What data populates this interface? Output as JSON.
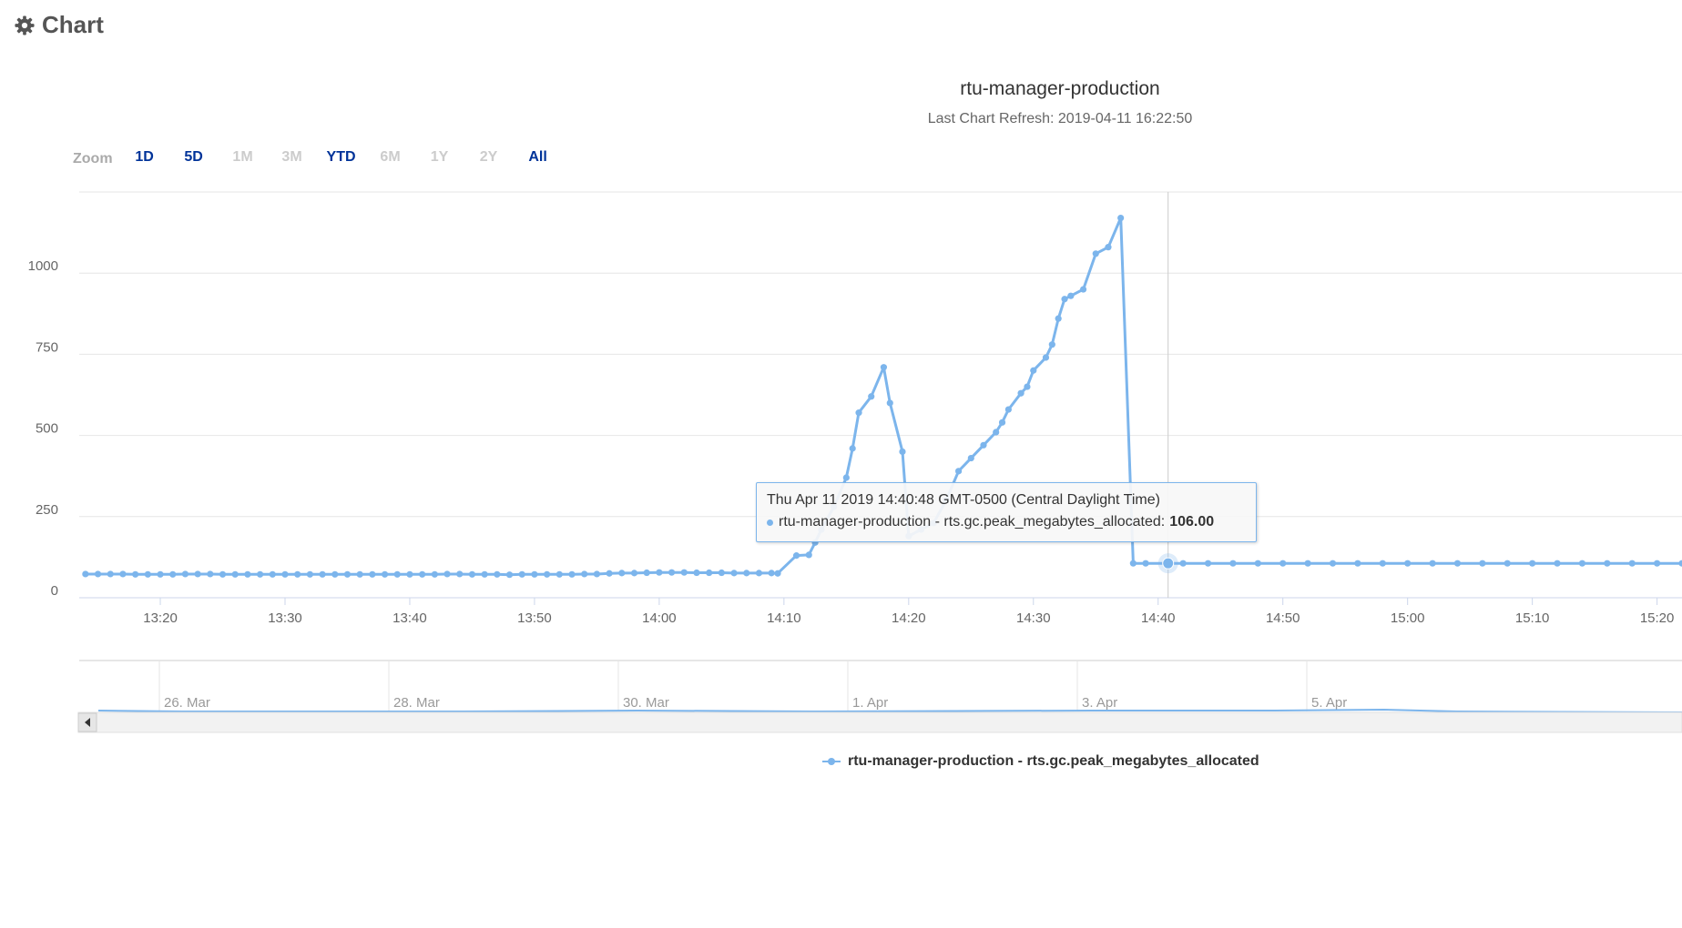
{
  "panel": {
    "title": "Chart",
    "icon": "gear-icon"
  },
  "zoom": {
    "label": "Zoom",
    "buttons": [
      {
        "label": "1D",
        "enabled": true
      },
      {
        "label": "5D",
        "enabled": true
      },
      {
        "label": "1M",
        "enabled": false
      },
      {
        "label": "3M",
        "enabled": false
      },
      {
        "label": "YTD",
        "enabled": true
      },
      {
        "label": "6M",
        "enabled": false
      },
      {
        "label": "1Y",
        "enabled": false
      },
      {
        "label": "2Y",
        "enabled": false
      },
      {
        "label": "All",
        "enabled": true
      }
    ]
  },
  "tooltip": {
    "header": "Thu Apr 11 2019 14:40:48 GMT-0500 (Central Daylight Time)",
    "series": "rtu-manager-production - rts.gc.peak_megabytes_allocated:",
    "value": "106.00"
  },
  "colors": {
    "series": "#7cb5ec",
    "enabled_button": "#003399",
    "disabled_button": "#cccccc"
  },
  "chart_data": {
    "type": "line",
    "title": "rtu-manager-production",
    "subtitle": "Last Chart Refresh: 2019-04-11 16:22:50",
    "xlabel": "",
    "ylabel": "",
    "ylim": [
      0,
      1250
    ],
    "yticks": [
      0,
      250,
      500,
      750,
      1000
    ],
    "xlim": [
      "13:13:30",
      "15:22:00"
    ],
    "xticks": [
      "13:20",
      "13:30",
      "13:40",
      "13:50",
      "14:00",
      "14:10",
      "14:20",
      "14:30",
      "14:40",
      "14:50",
      "15:00",
      "15:10",
      "15:20"
    ],
    "grid": true,
    "legend_position": "bottom",
    "series": [
      {
        "name": "rtu-manager-production - rts.gc.peak_megabytes_allocated",
        "x": [
          "13:14",
          "13:15",
          "13:16",
          "13:17",
          "13:18",
          "13:19",
          "13:20",
          "13:21",
          "13:22",
          "13:23",
          "13:24",
          "13:25",
          "13:26",
          "13:27",
          "13:28",
          "13:29",
          "13:30",
          "13:31",
          "13:32",
          "13:33",
          "13:34",
          "13:35",
          "13:36",
          "13:37",
          "13:38",
          "13:39",
          "13:40",
          "13:41",
          "13:42",
          "13:43",
          "13:44",
          "13:45",
          "13:46",
          "13:47",
          "13:48",
          "13:49",
          "13:50",
          "13:51",
          "13:52",
          "13:53",
          "13:54",
          "13:55",
          "13:56",
          "13:57",
          "13:58",
          "13:59",
          "14:00",
          "14:01",
          "14:02",
          "14:03",
          "14:04",
          "14:05",
          "14:06",
          "14:07",
          "14:08",
          "14:09",
          "14:09:30",
          "14:11",
          "14:12",
          "14:12:30",
          "14:13",
          "14:14",
          "14:15",
          "14:15:30",
          "14:16",
          "14:17",
          "14:18",
          "14:18:30",
          "14:19:30",
          "14:20",
          "14:21",
          "14:22",
          "14:23",
          "14:24",
          "14:25",
          "14:26",
          "14:27",
          "14:27:30",
          "14:28",
          "14:29",
          "14:29:30",
          "14:30",
          "14:31",
          "14:31:30",
          "14:32",
          "14:32:30",
          "14:33",
          "14:34",
          "14:35",
          "14:36",
          "14:37",
          "14:38",
          "14:39",
          "14:40:48",
          "14:42",
          "14:44",
          "14:46",
          "14:48",
          "14:50",
          "14:52",
          "14:54",
          "14:56",
          "14:58",
          "15:00",
          "15:02",
          "15:04",
          "15:06",
          "15:08",
          "15:10",
          "15:12",
          "15:14",
          "15:16",
          "15:18",
          "15:20",
          "15:22"
        ],
        "y": [
          73,
          73,
          73,
          73,
          72,
          72,
          72,
          72,
          73,
          73,
          73,
          72,
          72,
          72,
          72,
          72,
          72,
          72,
          72,
          72,
          72,
          72,
          72,
          72,
          72,
          72,
          72,
          72,
          72,
          73,
          73,
          72,
          72,
          72,
          71,
          72,
          72,
          72,
          72,
          72,
          73,
          73,
          75,
          76,
          76,
          77,
          78,
          78,
          78,
          77,
          77,
          77,
          76,
          76,
          76,
          76,
          75,
          130,
          132,
          170,
          210,
          280,
          370,
          460,
          570,
          620,
          710,
          600,
          450,
          190,
          210,
          230,
          300,
          390,
          430,
          470,
          510,
          540,
          580,
          630,
          650,
          700,
          740,
          780,
          860,
          920,
          930,
          950,
          1060,
          1080,
          1170,
          106,
          106,
          106,
          106,
          106,
          106,
          106,
          106,
          106,
          106,
          106,
          106,
          106,
          106,
          106,
          106,
          106,
          106,
          106,
          106,
          106,
          106,
          106,
          106
        ]
      }
    ],
    "navigator": {
      "labels": [
        "26. Mar",
        "28. Mar",
        "30. Mar",
        "1. Apr",
        "3. Apr",
        "5. Apr"
      ]
    }
  }
}
